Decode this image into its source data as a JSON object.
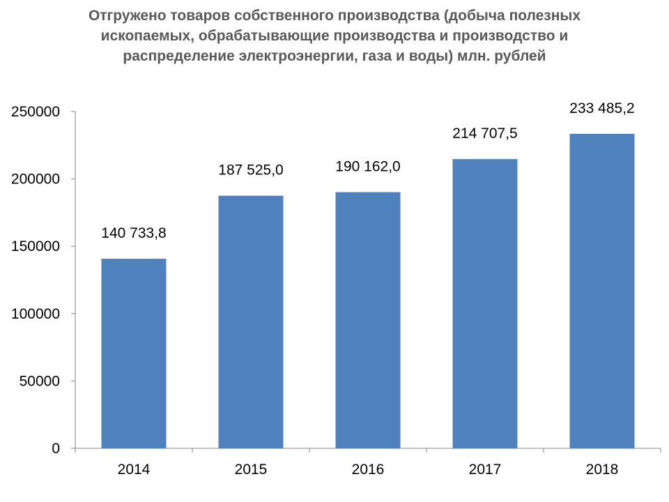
{
  "chart_data": {
    "type": "bar",
    "title_lines": [
      "Отгружено товаров собственного производства (добыча полезных",
      "ископаемых, обрабатывающие производства и производство и",
      "распределение электроэнергии, газа и воды) млн. рублей"
    ],
    "categories": [
      "2014",
      "2015",
      "2016",
      "2017",
      "2018"
    ],
    "values": [
      140733.8,
      187525.0,
      190162.0,
      214707.5,
      233485.2
    ],
    "data_labels": [
      "140 733,8",
      "187 525,0",
      "190 162,0",
      "214 707,5",
      "233 485,2"
    ],
    "y_ticks": [
      "0",
      "50000",
      "100000",
      "150000",
      "200000",
      "250000"
    ],
    "ylim": [
      0,
      250000
    ],
    "xlabel": "",
    "ylabel": "",
    "grid": false,
    "bar_color": "#4F81BD",
    "axis_color": "#868686"
  }
}
